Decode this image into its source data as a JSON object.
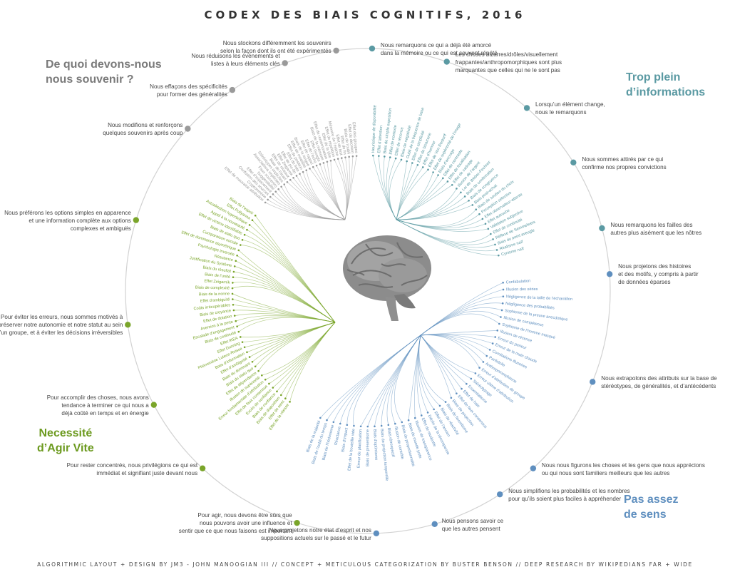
{
  "title": "CODEX DES BIAIS COGNITIFS, 2016",
  "footer": "ALGORITHMIC LAYOUT + DESIGN BY JM3 - JOHN MANOOGIAN III // CONCEPT + METICULOUS CATEGORIZATION BY BUSTER BENSON // DEEP RESEARCH BY WIKIPEDIANS FAR + WIDE",
  "quadrants": {
    "memoire": [
      "De quoi devons-nous",
      "nous souvenir ?"
    ],
    "trop": [
      "Trop plein",
      "d’informations"
    ],
    "agir": [
      "Necessité",
      "d’Agir Vite"
    ],
    "sens": [
      "Pas assez",
      "de sens"
    ]
  },
  "colors": {
    "memoire": "#9a9a9a",
    "trop": "#5b9aa3",
    "sens": "#5f8fbf",
    "agir": "#7aa52a",
    "brain": "#8a8a8a"
  },
  "icons": [
    "brain-icon"
  ],
  "categories": [
    {
      "group": "memoire",
      "lines": [
        "Nous stockons différemment les souvenirs",
        "selon la façon dont ils ont été expérimentés"
      ]
    },
    {
      "group": "memoire",
      "lines": [
        "Nous réduisons les événements et",
        "listes à leurs éléments clés"
      ]
    },
    {
      "group": "memoire",
      "lines": [
        "Nous effaçons des spécificités",
        "pour former des généralités"
      ]
    },
    {
      "group": "memoire",
      "lines": [
        "Nous modifions et renforçons",
        "quelques souvenirs après coup"
      ]
    },
    {
      "group": "agir",
      "lines": [
        "Nous préférons les options simples en apparence",
        "et une information complète aux options",
        "complexes et ambiguës"
      ]
    },
    {
      "group": "agir",
      "lines": [
        "Pour éviter les erreurs, nous sommes motivés à",
        "préserver notre autonomie et notre statut au sein",
        "d’un groupe, et à éviter les décisions irréversibles"
      ]
    },
    {
      "group": "agir",
      "lines": [
        "Pour accomplir des choses, nous avons",
        "tendance à terminer ce qui nous a",
        "déjà coûté en temps et en énergie"
      ]
    },
    {
      "group": "agir",
      "lines": [
        "Pour rester concentrés, nous privilégions ce qui est",
        "immédiat et signifiant juste devant nous"
      ]
    },
    {
      "group": "agir",
      "lines": [
        "Pour agir, nous devons être sûrs que",
        "nous pouvons avoir une influence et",
        "sentir que ce que nous faisons est important"
      ]
    },
    {
      "group": "sens",
      "lines": [
        "Nous projetons notre état d’esprit et nos",
        "suppositions actuels sur le passé et le futur"
      ]
    },
    {
      "group": "sens",
      "lines": [
        "Nous pensons savoir ce",
        "que les autres pensent"
      ]
    },
    {
      "group": "sens",
      "lines": [
        "Nous simplifions les probabilités et les nombres",
        "pour qu’ils soient plus faciles à appréhender"
      ]
    },
    {
      "group": "sens",
      "lines": [
        "Nous nous figurons les choses et les gens que nous apprécions",
        "ou qui nous sont familiers meilleurs que les autres"
      ]
    },
    {
      "group": "sens",
      "lines": [
        "Nous extrapolons des attributs sur la base de",
        "stéréotypes, de généralités, et d’antécédents"
      ]
    },
    {
      "group": "sens",
      "lines": [
        "Nous projetons des histoires",
        "et des motifs, y compris à partir",
        "de données éparses"
      ]
    },
    {
      "group": "trop",
      "lines": [
        "Nous remarquons les failles des",
        "autres plus aisément que les nôtres"
      ]
    },
    {
      "group": "trop",
      "lines": [
        "Nous sommes attirés par ce qui",
        "confirme nos propres convictions"
      ]
    },
    {
      "group": "trop",
      "lines": [
        "Lorsqu’un élément change,",
        "nous le remarquons"
      ]
    },
    {
      "group": "trop",
      "lines": [
        "Les choses bizarres/drôles/visuellement",
        "frappantes/anthropomorphiques sont plus",
        "marquantes que celles qui ne le sont pas"
      ]
    },
    {
      "group": "trop",
      "lines": [
        "Nous remarquons ce qui a déjà été amorcé",
        "dans la mémoire ou ce qui est souvent répété"
      ]
    }
  ],
  "bias_groups": [
    {
      "group": "trop",
      "items": [
        "Heuristique de disponibilité",
        "Effet d’attention",
        "Biais de simple exposition",
        "Effet de contexte",
        "Effet de récence",
        "Biais de négativité",
        "Oubli de la fréquence de base",
        "Effet de simplicité",
        "Effet de bizarrerie",
        "Effet d’humour",
        "Effet de Von Restorff",
        "Effet de supériorité de l’image",
        "Biais d’ancrage",
        "Effet de contraste",
        "Effet de focalisation",
        "Effet de cadrage",
        "Illusion de l’argent",
        "Loi de Weber-Fechner",
        "Biais de confirmation",
        "Biais de congruence",
        "Biais post-achat",
        "Biais de soutien du choix",
        "Perception sélective",
        "Effet observateur-attente",
        "Effet autruche",
        "Validation subjective",
        "Effet de continuité",
        "Réflexe de Semmelweis",
        "Biais du point aveugle",
        "Réalisme naïf",
        "Cynisme naïf"
      ]
    },
    {
      "group": "sens",
      "items": [
        "Confabulation",
        "Illusion des séries",
        "Négligence de la taille de l’échantillon",
        "Négligence des probabilités",
        "Sophisme de la preuve anecdotique",
        "Illusion de compétence",
        "Sophisme de l’homme masqué",
        "Illusion de récence",
        "Erreur du parieur",
        "Erreur de la main chaude",
        "Corrélations illusoires",
        "Paréidolie",
        "Anthropomorphisme",
        "Erreur d’attribution de groupe",
        "Erreur ultime d’attribution",
        "Stéréotypage",
        "Essentialisme",
        "Effet de halo",
        "Effet de faux consensus",
        "Biais de projection",
        "Biais de favoritisme",
        "Biais de réactivité",
        "Effet de l’ancien",
        "Déclin de la récompense",
        "Effet de modestie",
        "Illusion de transparence",
        "Biais de monde juste",
        "Biais de proportionnalité",
        "Illusion de contrôle",
        "Biais rétrospectif",
        "Biais de projection temporelle",
        "Biais d’optimisme",
        "Biais de présentisme",
        "Erreur de planification",
        "Effet de la bouteille vide",
        "Biais d’impact",
        "Réactance",
        "Biais de l’hédonisme",
        "Biais de l’oubli du temps",
        "Biais de la majorité"
      ]
    },
    {
      "group": "agir",
      "items": [
        "Effet de la vitesse",
        "Effet de sens",
        "Biais de disposition",
        "Biais de confiance",
        "Excès de confiance",
        "Effet de faux consensus",
        "Erreur fondamentale d’attribution",
        "Illusion de supériorité",
        "Effet de dépendance",
        "Biais du statu quo",
        "Biais du dominant",
        "Effet d’ambiguïté",
        "Biais d’information",
        "Phénomène Lutece-Roisse",
        "Effet Dunning",
        "Effet IKEA",
        "Biais de continuité",
        "Escalade d’engagement",
        "Aversion à la perte",
        "Effet de dotation",
        "Biais de croyance",
        "Coûts irrécupérables",
        "Effet d’ambiguité",
        "Biais de la norme",
        "Biais de complexité",
        "Effet Zeigarnik",
        "Biais de l’unité",
        "Biais du résultat",
        "Justification du Système",
        "Réactance",
        "Psychologie inversée",
        "Effet de dominance asymétrique",
        "Comparaison sociale",
        "Biais de statu quo",
        "Effet de victime identifiable",
        "Appel à la nouveauté",
        "Actualisation hyperbolique",
        "Effet Pollyanna",
        "Biais de l’espoir"
      ]
    },
    {
      "group": "memoire",
      "items": [
        "Effet de mauvaise attribution",
        "Cryptomnésie",
        "Confusion des sources",
        "Effet d’espacement",
        "Suggestibilité",
        "Faux souvenirs",
        "Associations implicites",
        "Stéréotypes implicites",
        "Biais de l’écart",
        "Effet de niveaux",
        "Effet Zeigarnik",
        "Effet de pic-fin",
        "Effet de liste",
        "Effet de position",
        "Effet de modalité",
        "Biais de la longue",
        "Effet de rappel",
        "Effet de l’écho",
        "Effet Google",
        "Biais de la mémoire",
        "Effet de remémoration",
        "Effet de la tête",
        "Effet de répétition",
        "Mémoire de l’estime",
        "Effet de test",
        "Effet de fin",
        "Biais de l’oubli",
        "Effet de décision",
        "Effet des groupes"
      ]
    }
  ]
}
